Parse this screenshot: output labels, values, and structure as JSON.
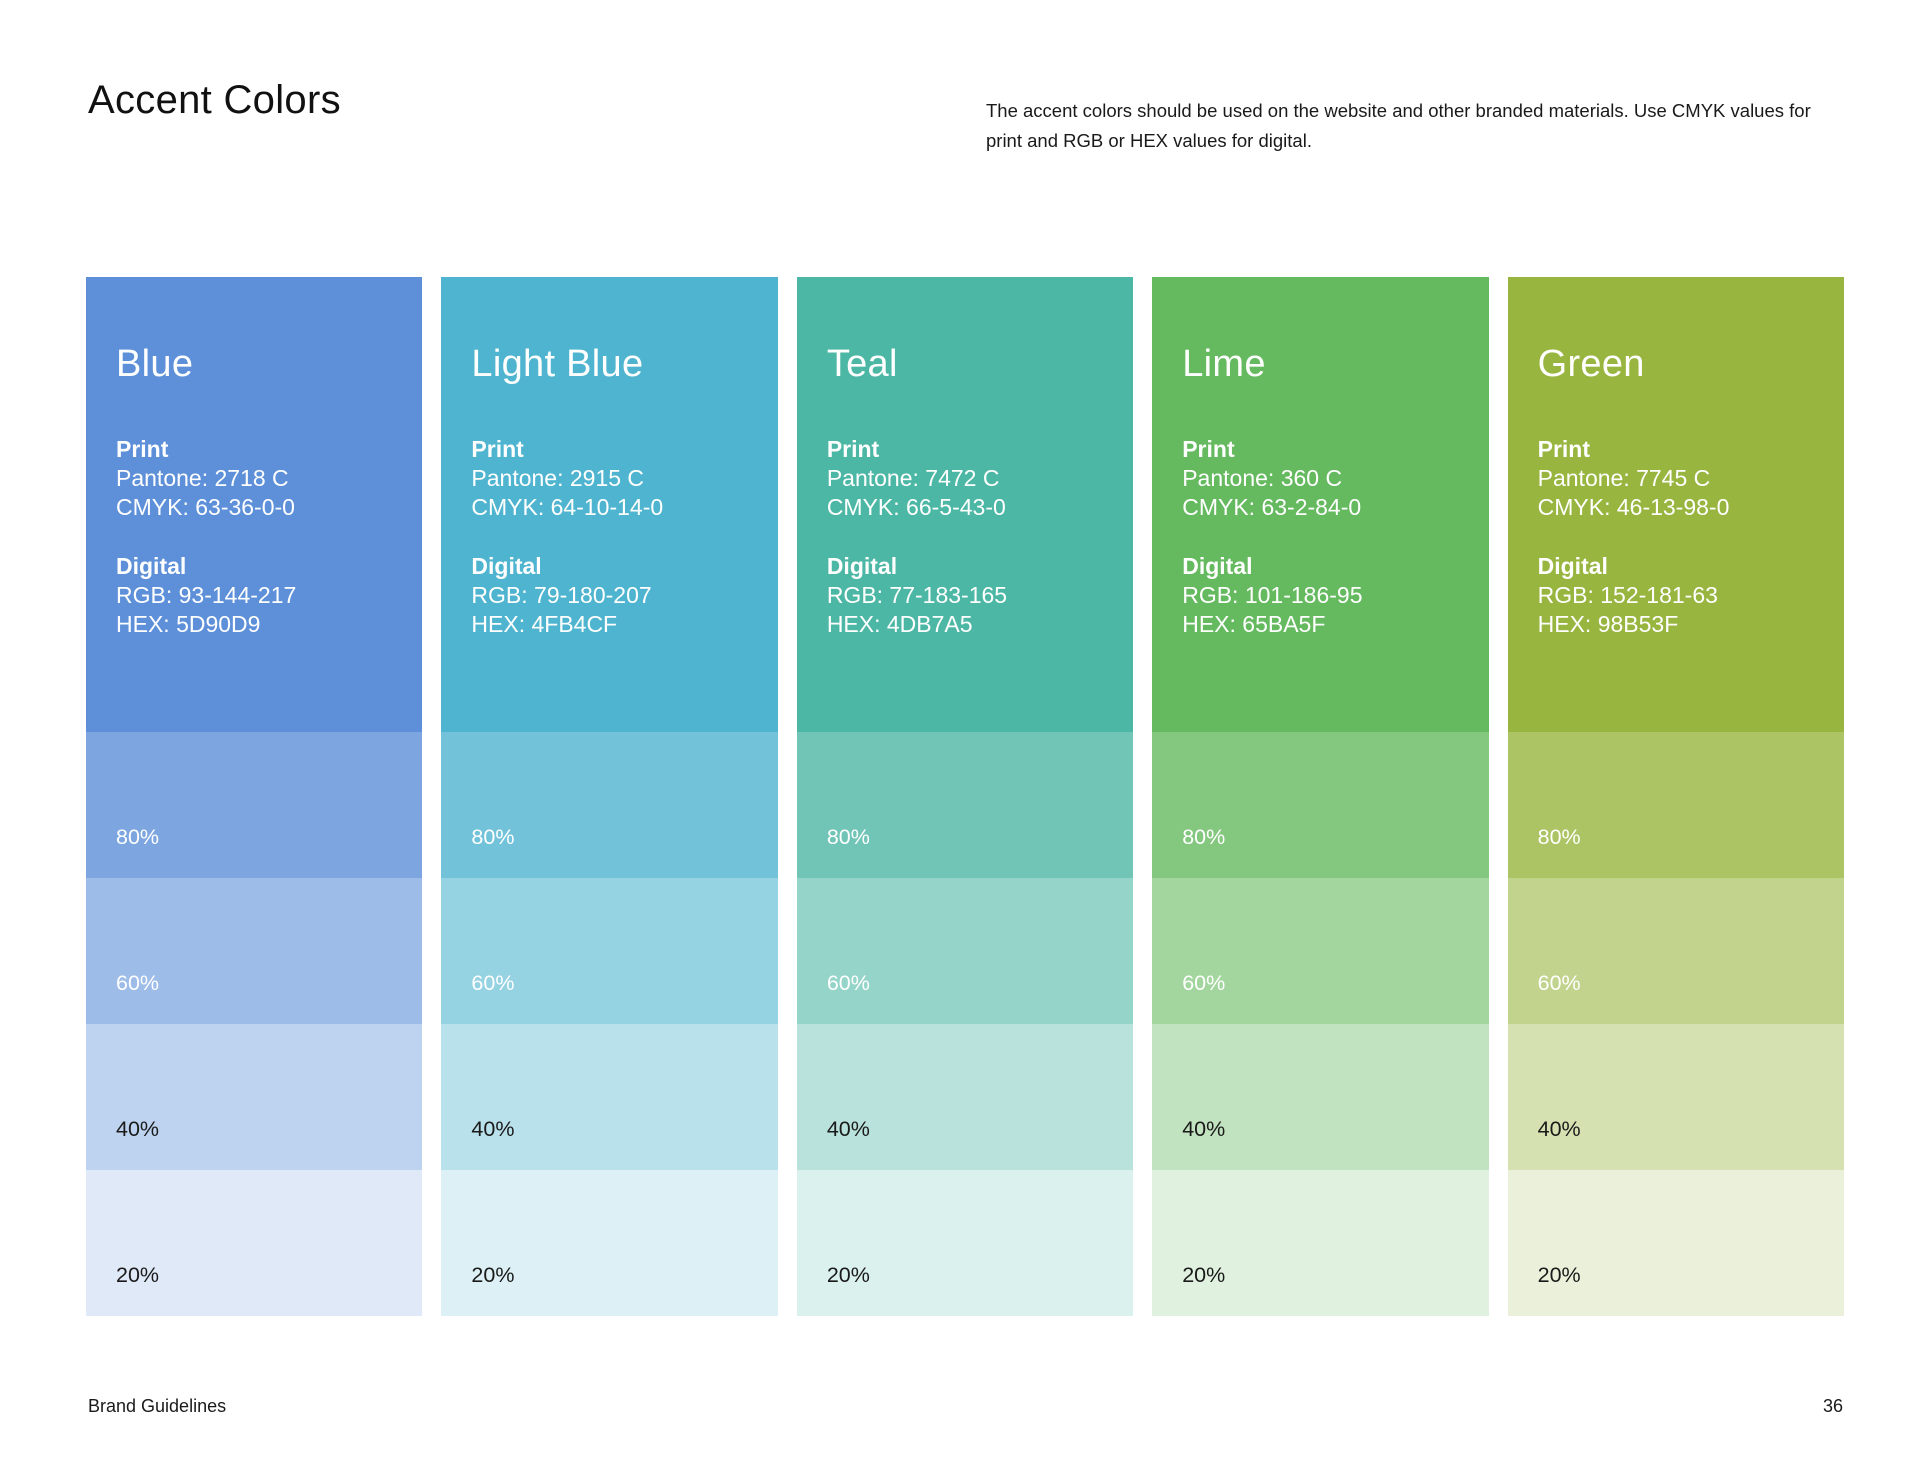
{
  "page": {
    "title": "Accent Colors",
    "intro": "The accent colors should be used on the website and other branded materials. Use CMYK values for print and RGB or HEX values for digital.",
    "footer_left": "Brand Guidelines",
    "page_number": "36"
  },
  "labels": {
    "print": "Print",
    "digital": "Digital"
  },
  "colors": [
    {
      "name": "Blue",
      "hex_color": "#5D90D9",
      "pantone": "Pantone: 2718 C",
      "cmyk": "CMYK: 63-36-0-0",
      "rgb": "RGB: 93-144-217",
      "hex": "HEX: 5D90D9",
      "tints": [
        {
          "label": "80%",
          "color": "#7DA6E1"
        },
        {
          "label": "60%",
          "color": "#9EBCE8"
        },
        {
          "label": "40%",
          "color": "#BED3F0"
        },
        {
          "label": "20%",
          "color": "#DFE9F7"
        }
      ]
    },
    {
      "name": "Light Blue",
      "hex_color": "#4FB4CF",
      "pantone": "Pantone: 2915 C",
      "cmyk": "CMYK: 64-10-14-0",
      "rgb": "RGB: 79-180-207",
      "hex": "HEX: 4FB4CF",
      "tints": [
        {
          "label": "80%",
          "color": "#72C3D9"
        },
        {
          "label": "60%",
          "color": "#95D2E2"
        },
        {
          "label": "40%",
          "color": "#B9E1EC"
        },
        {
          "label": "20%",
          "color": "#DCF0F5"
        }
      ]
    },
    {
      "name": "Teal",
      "hex_color": "#4DB7A5",
      "pantone": "Pantone: 7472 C",
      "cmyk": "CMYK: 66-5-43-0",
      "rgb": "RGB: 77-183-165",
      "hex": "HEX: 4DB7A5",
      "tints": [
        {
          "label": "80%",
          "color": "#71C5B7"
        },
        {
          "label": "60%",
          "color": "#94D4C9"
        },
        {
          "label": "40%",
          "color": "#B8E2DB"
        },
        {
          "label": "20%",
          "color": "#DBF1ED"
        }
      ]
    },
    {
      "name": "Lime",
      "hex_color": "#65BA5F",
      "pantone": "Pantone: 360 C",
      "cmyk": "CMYK: 63-2-84-0",
      "rgb": "RGB: 101-186-95",
      "hex": "HEX: 65BA5F",
      "tints": [
        {
          "label": "80%",
          "color": "#84C87F"
        },
        {
          "label": "60%",
          "color": "#A3D69F"
        },
        {
          "label": "40%",
          "color": "#C1E3BF"
        },
        {
          "label": "20%",
          "color": "#E0F1DF"
        }
      ]
    },
    {
      "name": "Green",
      "hex_color": "#98B53F",
      "pantone": "Pantone: 7745 C",
      "cmyk": "CMYK: 46-13-98-0",
      "rgb": "RGB: 152-181-63",
      "hex": "HEX: 98B53F",
      "tints": [
        {
          "label": "80%",
          "color": "#ADC465"
        },
        {
          "label": "60%",
          "color": "#C1D38C"
        },
        {
          "label": "40%",
          "color": "#D6E1B2"
        },
        {
          "label": "20%",
          "color": "#EAF0D9"
        }
      ]
    }
  ]
}
